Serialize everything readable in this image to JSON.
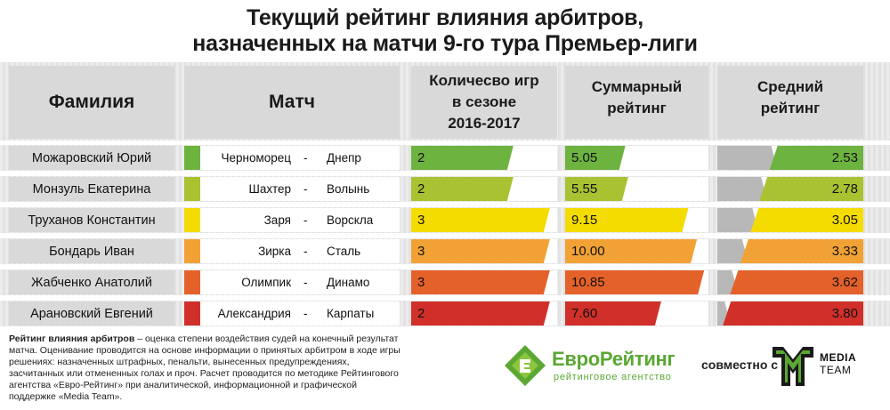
{
  "title": {
    "line1": "Текущий рейтинг влияния арбитров,",
    "line2": "назначенных на матчи 9-го тура Премьер-лиги"
  },
  "headers": {
    "name": "Фамилия",
    "match": "Матч",
    "games_line1": "Количесво игр",
    "games_line2": "в сезоне",
    "games_line3": "2016-2017",
    "total_line1": "Суммарный",
    "total_line2": "рейтинг",
    "avg_line1": "Средний",
    "avg_line2": "рейтинг"
  },
  "rows": [
    {
      "name": "Можаровский Юрий",
      "home": "Черноморец",
      "dash": "-",
      "away": "Днепр",
      "games": "2",
      "total": "5.05",
      "avg": "2.53",
      "color": "#6db33f"
    },
    {
      "name": "Монзуль Екатерина",
      "home": "Шахтер",
      "dash": "-",
      "away": "Волынь",
      "games": "2",
      "total": "5.55",
      "avg": "2.78",
      "color": "#a8c232"
    },
    {
      "name": "Труханов Константин",
      "home": "Заря",
      "dash": "-",
      "away": "Ворскла",
      "games": "3",
      "total": "9.15",
      "avg": "3.05",
      "color": "#f5dc00"
    },
    {
      "name": "Бондарь Иван",
      "home": "Зирка",
      "dash": "-",
      "away": "Сталь",
      "games": "3",
      "total": "10.00",
      "avg": "3.33",
      "color": "#f2a235"
    },
    {
      "name": "Жабченко Анатолий",
      "home": "Олимпик",
      "dash": "-",
      "away": "Динамо",
      "games": "3",
      "total": "10.85",
      "avg": "3.62",
      "color": "#e5612a"
    },
    {
      "name": "Арановский Евгений",
      "home": "Александрия",
      "dash": "-",
      "away": "Карпаты",
      "games": "2",
      "total": "7.60",
      "avg": "3.80",
      "color": "#d1302a"
    }
  ],
  "chart_data": {
    "type": "table",
    "title": "Текущий рейтинг влияния арбитров, назначенных на матчи 9-го тура Премьер-лиги",
    "columns": [
      "Фамилия",
      "Матч",
      "Количесво игр в сезоне 2016-2017",
      "Суммарный рейтинг",
      "Средний рейтинг"
    ],
    "series": [
      {
        "name": "Количесво игр в сезоне 2016-2017",
        "values": [
          2,
          2,
          3,
          3,
          3,
          2
        ]
      },
      {
        "name": "Суммарный рейтинг",
        "values": [
          5.05,
          5.55,
          9.15,
          10.0,
          10.85,
          7.6
        ]
      },
      {
        "name": "Средний рейтинг",
        "values": [
          2.53,
          2.78,
          3.05,
          3.33,
          3.62,
          3.8
        ]
      }
    ],
    "categories": [
      "Можаровский Юрий",
      "Монзуль Екатерина",
      "Труханов Константин",
      "Бондарь Иван",
      "Жабченко Анатолий",
      "Арановский Евгений"
    ],
    "bar_fill": {
      "games": [
        0.7,
        0.7,
        0.95,
        0.95,
        0.95,
        0.95
      ],
      "total": [
        0.42,
        0.44,
        0.86,
        0.92,
        0.97,
        0.67
      ],
      "avg": [
        0.67,
        0.77,
        0.88,
        0.92,
        0.95,
        0.98
      ]
    },
    "avg_gray_fill": [
      0.37,
      0.3,
      0.24,
      0.17,
      0.1,
      0.05
    ]
  },
  "footnote": {
    "bold": "Рейтинг влияния арбитров",
    "text": " – оценка степени воздействия судей на конечный результат матча. Оценивание проводится на основе информации о принятых арбитром в ходе игры решениях: назначенных штрафных, пенальти, вынесенных предупреждениях, засчитанных или отмененных голах и проч. Расчет проводится по методике Рейтингового агентства «Евро-Рейтинг» при аналитической, информационной и графической поддержке «Media Team»."
  },
  "logos": {
    "euro_main": "ЕвроРейтинг",
    "euro_sub": "рейтинговое агентство",
    "together": "совместно с",
    "media_line1": "MEDIA",
    "media_line2": "TEAM"
  },
  "colors": {
    "green_brand": "#5aa832",
    "header_gray": "#d9d9d9",
    "bar_gray": "#b8b8b8"
  }
}
